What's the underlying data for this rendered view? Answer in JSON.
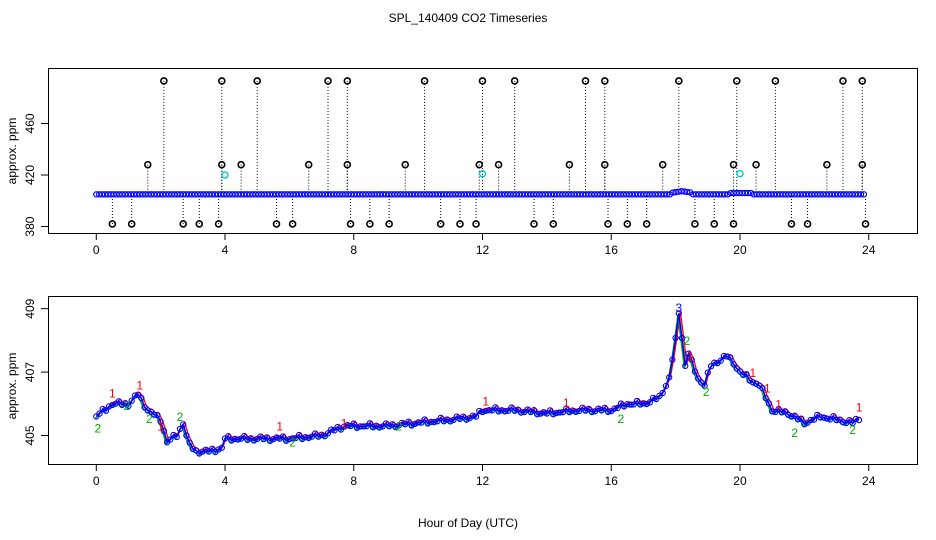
{
  "title": "SPL_140409  CO2 Timeseries",
  "xlabel": "Hour of Day (UTC)",
  "colors": {
    "overlay": "#000000",
    "series": "#0000ff",
    "cyan": "#00c8d8",
    "code1": "#ff0000",
    "code2": "#00b000",
    "code3": "#0000ff"
  },
  "chart_data": [
    {
      "type": "scatter",
      "name": "top-panel",
      "ylabel": "approx. ppm",
      "xlim": [
        -1.5,
        25.5
      ],
      "ylim": [
        375,
        503
      ],
      "xticks": [
        0,
        4,
        8,
        12,
        16,
        20,
        24
      ],
      "yticks": [
        380,
        420,
        460
      ],
      "ytick_labels": [
        "380",
        "420",
        "460"
      ],
      "baseline": 405,
      "high_value": 493,
      "mid_value": 428,
      "low_value": 382,
      "high_spikes": [
        2.1,
        3.9,
        5.0,
        7.2,
        7.8,
        10.2,
        12.0,
        13.0,
        15.2,
        15.8,
        18.1,
        19.9,
        21.1,
        23.2,
        23.8
      ],
      "mid_spikes": [
        1.6,
        3.9,
        4.5,
        6.6,
        7.8,
        9.6,
        11.9,
        12.5,
        14.7,
        15.8,
        17.6,
        19.8,
        20.5,
        22.7,
        23.8
      ],
      "low_spikes": [
        0.5,
        1.1,
        2.7,
        3.2,
        3.8,
        5.6,
        6.1,
        7.9,
        8.5,
        9.1,
        10.7,
        11.3,
        11.8,
        13.6,
        14.2,
        15.9,
        16.5,
        17.1,
        18.6,
        19.2,
        19.8,
        21.6,
        22.1,
        23.9
      ],
      "cyan_points": [
        [
          4.0,
          420
        ],
        [
          12.0,
          421
        ],
        [
          20.0,
          421
        ]
      ]
    },
    {
      "type": "line",
      "name": "bottom-panel",
      "ylabel": "approx. ppm",
      "xlim": [
        -1.5,
        25.5
      ],
      "ylim": [
        404.1,
        409.4
      ],
      "xticks": [
        0,
        4,
        8,
        12,
        16,
        20,
        24
      ],
      "yticks": [
        405,
        407,
        409
      ],
      "ytick_labels": [
        "405",
        "407",
        "409"
      ],
      "anchors": [
        [
          0.0,
          405.6
        ],
        [
          0.5,
          406.0
        ],
        [
          1.0,
          406.0
        ],
        [
          1.3,
          406.3
        ],
        [
          1.6,
          405.8
        ],
        [
          2.0,
          405.5
        ],
        [
          2.2,
          404.8
        ],
        [
          2.5,
          405.0
        ],
        [
          2.7,
          405.4
        ],
        [
          2.8,
          405.0
        ],
        [
          2.9,
          404.7
        ],
        [
          3.1,
          404.5
        ],
        [
          3.5,
          404.5
        ],
        [
          3.9,
          404.6
        ],
        [
          4.0,
          404.9
        ],
        [
          5.0,
          404.9
        ],
        [
          6.0,
          404.9
        ],
        [
          7.0,
          405.0
        ],
        [
          7.7,
          405.3
        ],
        [
          8.0,
          405.3
        ],
        [
          9.0,
          405.3
        ],
        [
          10.0,
          405.4
        ],
        [
          11.0,
          405.5
        ],
        [
          11.8,
          405.6
        ],
        [
          12.0,
          405.8
        ],
        [
          13.0,
          405.8
        ],
        [
          14.0,
          405.7
        ],
        [
          15.0,
          405.8
        ],
        [
          15.8,
          405.8
        ],
        [
          16.0,
          405.8
        ],
        [
          16.5,
          406.0
        ],
        [
          17.0,
          406.0
        ],
        [
          17.5,
          406.2
        ],
        [
          17.8,
          406.8
        ],
        [
          18.0,
          408.0
        ],
        [
          18.1,
          408.9
        ],
        [
          18.2,
          408.1
        ],
        [
          18.3,
          407.2
        ],
        [
          18.4,
          407.6
        ],
        [
          18.5,
          407.3
        ],
        [
          18.7,
          406.8
        ],
        [
          18.9,
          406.6
        ],
        [
          19.1,
          407.2
        ],
        [
          19.4,
          407.4
        ],
        [
          19.6,
          407.5
        ],
        [
          19.8,
          407.3
        ],
        [
          20.0,
          407.0
        ],
        [
          20.4,
          406.7
        ],
        [
          20.6,
          406.6
        ],
        [
          20.8,
          406.2
        ],
        [
          21.0,
          405.8
        ],
        [
          21.5,
          405.7
        ],
        [
          22.0,
          405.4
        ],
        [
          22.5,
          405.6
        ],
        [
          23.0,
          405.5
        ],
        [
          23.5,
          405.4
        ],
        [
          23.8,
          405.6
        ]
      ],
      "code_labels": [
        {
          "x": 0.05,
          "y": 405.2,
          "t": "2",
          "c": "code2"
        },
        {
          "x": 0.5,
          "y": 406.3,
          "t": "1",
          "c": "code1"
        },
        {
          "x": 0.95,
          "y": 405.9,
          "t": "2",
          "c": "code2"
        },
        {
          "x": 1.35,
          "y": 406.55,
          "t": "1",
          "c": "code1"
        },
        {
          "x": 1.65,
          "y": 405.5,
          "t": "2",
          "c": "code2"
        },
        {
          "x": 2.0,
          "y": 405.25,
          "t": "1",
          "c": "code1"
        },
        {
          "x": 2.6,
          "y": 405.55,
          "t": "2",
          "c": "code2"
        },
        {
          "x": 5.7,
          "y": 405.25,
          "t": "1",
          "c": "code1"
        },
        {
          "x": 6.1,
          "y": 404.75,
          "t": "2",
          "c": "code2"
        },
        {
          "x": 7.7,
          "y": 405.35,
          "t": "1",
          "c": "code1"
        },
        {
          "x": 9.4,
          "y": 405.25,
          "t": "2",
          "c": "code2"
        },
        {
          "x": 12.1,
          "y": 406.05,
          "t": "1",
          "c": "code1"
        },
        {
          "x": 14.6,
          "y": 406.0,
          "t": "1",
          "c": "code1"
        },
        {
          "x": 16.3,
          "y": 405.5,
          "t": "2",
          "c": "code2"
        },
        {
          "x": 18.1,
          "y": 409.0,
          "t": "3",
          "c": "code3"
        },
        {
          "x": 18.35,
          "y": 407.95,
          "t": "2",
          "c": "code2"
        },
        {
          "x": 18.45,
          "y": 407.45,
          "t": "1",
          "c": "code1"
        },
        {
          "x": 18.95,
          "y": 406.35,
          "t": "2",
          "c": "code2"
        },
        {
          "x": 20.4,
          "y": 406.95,
          "t": "1",
          "c": "code1"
        },
        {
          "x": 20.85,
          "y": 406.45,
          "t": "1",
          "c": "code1"
        },
        {
          "x": 21.2,
          "y": 405.95,
          "t": "1",
          "c": "code1"
        },
        {
          "x": 21.7,
          "y": 405.05,
          "t": "2",
          "c": "code2"
        },
        {
          "x": 23.7,
          "y": 405.85,
          "t": "1",
          "c": "code1"
        },
        {
          "x": 23.5,
          "y": 405.15,
          "t": "2",
          "c": "code2"
        }
      ]
    }
  ]
}
